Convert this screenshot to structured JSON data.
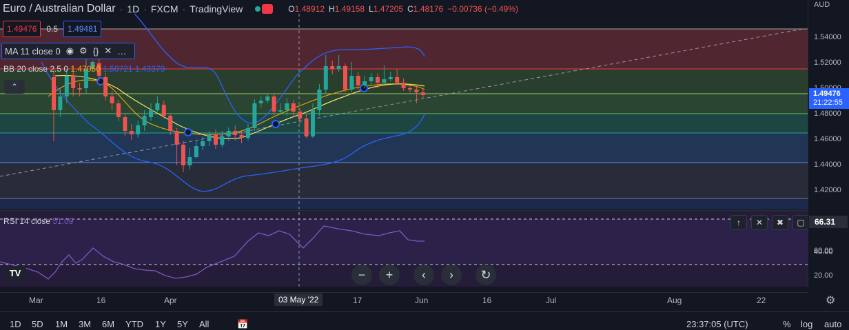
{
  "header": {
    "symbol": "Euro / Australian Dollar",
    "interval": "1D",
    "exchange": "FXCM",
    "source": "TradingView",
    "ohlc": {
      "o_label": "O",
      "o": "1.48912",
      "h_label": "H",
      "h": "1.49158",
      "l_label": "L",
      "l": "1.47205",
      "c_label": "C",
      "c": "1.48176",
      "change": "−0.00736 (−0.49%)"
    }
  },
  "trade": {
    "bid": "1.49476",
    "spread": "0.5",
    "ask": "1.49481"
  },
  "indicators": {
    "ma": {
      "label": "MA 11 close 0"
    },
    "bb": {
      "label": "BB 20 close 2.5 0",
      "basis": "1.47050",
      "upper": "1.50721",
      "lower": "1.43379"
    },
    "rsi": {
      "label": "RSI 14 close",
      "value": "51.09",
      "tag": "66.31"
    }
  },
  "price_axis": {
    "currency": "AUD",
    "ticks": [
      "1.54000",
      "1.52000",
      "1.50000",
      "1.48000",
      "1.46000",
      "1.44000",
      "1.42000"
    ],
    "last_price": "1.49476",
    "countdown": "21:22:55"
  },
  "rsi_axis": {
    "ticks": [
      "60.00",
      "40.00",
      "20.00"
    ]
  },
  "time_axis": {
    "labels": [
      "Mar",
      "16",
      "Apr",
      "03 May '22",
      "17",
      "Jun",
      "16",
      "Jul",
      "Aug",
      "22"
    ]
  },
  "bottom_bar": {
    "ranges": [
      "1D",
      "5D",
      "1M",
      "3M",
      "6M",
      "YTD",
      "1Y",
      "5Y",
      "All"
    ],
    "clock": "23:37:05 (UTC)",
    "pct": "%",
    "log": "log",
    "auto": "auto"
  },
  "icons": {
    "eye": "eye-icon",
    "settings": "gear-icon",
    "source": "code-braces-icon",
    "remove": "close-icon",
    "more": "more-icon",
    "collapse": "chevron-up-icon",
    "calendar": "calendar-icon",
    "logo": "tradingview-logo"
  },
  "colors": {
    "up": "#26a69a",
    "down": "#ef5350",
    "accent": "#2962ff",
    "rsi": "#7e57c2",
    "bb": "#2962ff",
    "ma": "#f7a600"
  }
}
